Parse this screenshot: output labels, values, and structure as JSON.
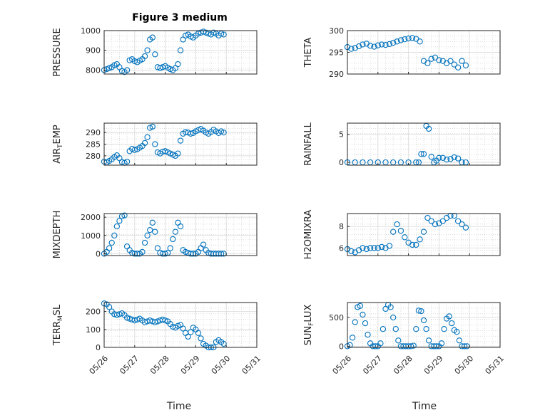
{
  "figure": {
    "title": "Figure 3 medium",
    "xlabel": "Time",
    "date_ticks": [
      "05/26",
      "05/27",
      "05/28",
      "05/29",
      "05/30",
      "05/31"
    ]
  },
  "chart_data": [
    {
      "type": "scatter",
      "ylabel": "PRESSURE",
      "ylim": [
        780,
        1000
      ],
      "yticks": [
        800,
        900,
        1000
      ],
      "xlim": [
        "05/26 00:00",
        "05/31 00:00"
      ],
      "grid": true,
      "marker": "o",
      "color": "#0072bd",
      "series": [
        {
          "x": [
            "05/26 00:00",
            "05/26 02:00",
            "05/26 04:00",
            "05/26 06:00",
            "05/26 08:00",
            "05/26 10:00",
            "05/26 12:00",
            "05/26 14:00",
            "05/26 16:00",
            "05/26 18:00",
            "05/26 20:00",
            "05/26 22:00",
            "05/27 00:00",
            "05/27 02:00",
            "05/27 04:00",
            "05/27 06:00",
            "05/27 08:00",
            "05/27 10:00",
            "05/27 12:00",
            "05/27 14:00",
            "05/27 16:00",
            "05/27 18:00",
            "05/27 20:00",
            "05/27 22:00",
            "05/28 00:00",
            "05/28 02:00",
            "05/28 04:00",
            "05/28 06:00",
            "05/28 08:00",
            "05/28 10:00",
            "05/28 12:00",
            "05/28 14:00",
            "05/28 16:00",
            "05/28 18:00",
            "05/28 20:00",
            "05/28 22:00",
            "05/29 00:00",
            "05/29 02:00",
            "05/29 04:00",
            "05/29 06:00",
            "05/29 08:00",
            "05/29 10:00",
            "05/29 12:00",
            "05/29 14:00",
            "05/29 16:00",
            "05/29 18:00",
            "05/29 20:00",
            "05/29 22:00"
          ],
          "y": [
            800,
            805,
            810,
            815,
            825,
            830,
            815,
            795,
            790,
            800,
            850,
            855,
            845,
            840,
            848,
            855,
            870,
            900,
            955,
            965,
            880,
            815,
            810,
            815,
            820,
            812,
            805,
            800,
            810,
            830,
            900,
            955,
            975,
            980,
            970,
            965,
            975,
            985,
            990,
            995,
            990,
            985,
            980,
            990,
            985,
            975,
            985,
            980
          ]
        }
      ]
    },
    {
      "type": "scatter",
      "ylabel": "THETA",
      "ylim": [
        290,
        300
      ],
      "yticks": [
        290,
        295,
        300
      ],
      "xlim": [
        "05/26 00:00",
        "05/31 00:00"
      ],
      "grid": true,
      "marker": "o",
      "color": "#0072bd",
      "series": [
        {
          "x": [
            "05/26 00:00",
            "05/26 03:00",
            "05/26 06:00",
            "05/26 09:00",
            "05/26 12:00",
            "05/26 15:00",
            "05/26 18:00",
            "05/26 21:00",
            "05/27 00:00",
            "05/27 03:00",
            "05/27 06:00",
            "05/27 09:00",
            "05/27 12:00",
            "05/27 15:00",
            "05/27 18:00",
            "05/27 21:00",
            "05/28 00:00",
            "05/28 03:00",
            "05/28 06:00",
            "05/28 09:00",
            "05/28 12:00",
            "05/28 15:00",
            "05/28 18:00",
            "05/28 21:00",
            "05/29 00:00",
            "05/29 03:00",
            "05/29 06:00",
            "05/29 09:00",
            "05/29 12:00",
            "05/29 15:00",
            "05/29 18:00",
            "05/29 21:00"
          ],
          "y": [
            296.2,
            295.8,
            296.0,
            296.4,
            296.8,
            297.0,
            296.5,
            296.3,
            296.6,
            296.8,
            296.7,
            296.9,
            297.2,
            297.5,
            297.8,
            298.0,
            298.2,
            298.3,
            298.1,
            297.5,
            293.0,
            292.5,
            293.5,
            293.8,
            293.2,
            293.0,
            292.5,
            293.0,
            292.2,
            291.5,
            293.0,
            292.0
          ]
        }
      ]
    },
    {
      "type": "scatter",
      "ylabel": "AIR_TEMP",
      "ylim": [
        276,
        294
      ],
      "yticks": [
        280,
        285,
        290
      ],
      "xlim": [
        "05/26 00:00",
        "05/31 00:00"
      ],
      "grid": true,
      "marker": "o",
      "color": "#0072bd",
      "series": [
        {
          "x": [
            "05/26 00:00",
            "05/26 02:00",
            "05/26 04:00",
            "05/26 06:00",
            "05/26 08:00",
            "05/26 10:00",
            "05/26 12:00",
            "05/26 14:00",
            "05/26 16:00",
            "05/26 18:00",
            "05/26 20:00",
            "05/26 22:00",
            "05/27 00:00",
            "05/27 02:00",
            "05/27 04:00",
            "05/27 06:00",
            "05/27 08:00",
            "05/27 10:00",
            "05/27 12:00",
            "05/27 14:00",
            "05/27 16:00",
            "05/27 18:00",
            "05/27 20:00",
            "05/27 22:00",
            "05/28 00:00",
            "05/28 02:00",
            "05/28 04:00",
            "05/28 06:00",
            "05/28 08:00",
            "05/28 10:00",
            "05/28 12:00",
            "05/28 14:00",
            "05/28 16:00",
            "05/28 18:00",
            "05/28 20:00",
            "05/28 22:00",
            "05/29 00:00",
            "05/29 02:00",
            "05/29 04:00",
            "05/29 06:00",
            "05/29 08:00",
            "05/29 10:00",
            "05/29 12:00",
            "05/29 14:00",
            "05/29 16:00",
            "05/29 18:00",
            "05/29 20:00",
            "05/29 22:00"
          ],
          "y": [
            277.5,
            277.2,
            277.8,
            278.5,
            279.5,
            280.2,
            279.0,
            277.3,
            277.0,
            277.5,
            282.0,
            283.0,
            282.5,
            282.8,
            283.5,
            284.2,
            285.5,
            288.0,
            292.0,
            292.5,
            285.0,
            281.5,
            281.0,
            281.8,
            282.0,
            281.5,
            281.0,
            280.5,
            280.0,
            281.0,
            286.5,
            289.5,
            290.2,
            290.0,
            289.5,
            289.8,
            290.5,
            291.0,
            291.5,
            290.8,
            290.0,
            289.5,
            290.2,
            291.2,
            290.5,
            289.8,
            290.5,
            290.0
          ]
        }
      ]
    },
    {
      "type": "scatter",
      "ylabel": "RAINFALL",
      "ylim": [
        -0.5,
        7
      ],
      "yticks": [
        0,
        5
      ],
      "xlim": [
        "05/26 00:00",
        "05/31 00:00"
      ],
      "grid": true,
      "marker": "o",
      "color": "#0072bd",
      "series": [
        {
          "x": [
            "05/26 00:00",
            "05/26 06:00",
            "05/26 12:00",
            "05/26 18:00",
            "05/27 00:00",
            "05/27 06:00",
            "05/27 12:00",
            "05/27 18:00",
            "05/28 00:00",
            "05/28 06:00",
            "05/28 08:00",
            "05/28 10:00",
            "05/28 12:00",
            "05/28 14:00",
            "05/28 16:00",
            "05/28 18:00",
            "05/28 20:00",
            "05/28 22:00",
            "05/29 00:00",
            "05/29 03:00",
            "05/29 06:00",
            "05/29 09:00",
            "05/29 12:00",
            "05/29 15:00",
            "05/29 18:00",
            "05/29 21:00"
          ],
          "y": [
            0,
            0,
            0,
            0,
            0,
            0,
            0,
            0,
            0,
            0,
            0,
            1.5,
            1.5,
            6.5,
            6.0,
            1.0,
            0,
            0.3,
            0.8,
            0.8,
            0.5,
            0.6,
            0.9,
            0.7,
            0,
            0
          ]
        }
      ]
    },
    {
      "type": "scatter",
      "ylabel": "MIXDEPTH",
      "ylim": [
        -100,
        2200
      ],
      "yticks": [
        0,
        1000,
        2000
      ],
      "xlim": [
        "05/26 00:00",
        "05/31 00:00"
      ],
      "grid": true,
      "marker": "o",
      "color": "#0072bd",
      "series": [
        {
          "x": [
            "05/26 00:00",
            "05/26 02:00",
            "05/26 04:00",
            "05/26 06:00",
            "05/26 08:00",
            "05/26 10:00",
            "05/26 12:00",
            "05/26 14:00",
            "05/26 16:00",
            "05/26 18:00",
            "05/26 20:00",
            "05/26 22:00",
            "05/27 00:00",
            "05/27 02:00",
            "05/27 04:00",
            "05/27 06:00",
            "05/27 08:00",
            "05/27 10:00",
            "05/27 12:00",
            "05/27 14:00",
            "05/27 16:00",
            "05/27 18:00",
            "05/27 20:00",
            "05/27 22:00",
            "05/28 00:00",
            "05/28 02:00",
            "05/28 04:00",
            "05/28 06:00",
            "05/28 08:00",
            "05/28 10:00",
            "05/28 12:00",
            "05/28 14:00",
            "05/28 16:00",
            "05/28 18:00",
            "05/28 20:00",
            "05/28 22:00",
            "05/29 00:00",
            "05/29 02:00",
            "05/29 04:00",
            "05/29 06:00",
            "05/29 08:00",
            "05/29 10:00",
            "05/29 12:00",
            "05/29 14:00",
            "05/29 16:00",
            "05/29 18:00",
            "05/29 20:00",
            "05/29 22:00"
          ],
          "y": [
            0,
            100,
            300,
            600,
            1000,
            1500,
            1800,
            2050,
            2100,
            400,
            200,
            50,
            0,
            0,
            0,
            100,
            600,
            1000,
            1300,
            1700,
            1200,
            300,
            50,
            0,
            0,
            50,
            300,
            800,
            1200,
            1700,
            1500,
            200,
            100,
            50,
            0,
            0,
            0,
            100,
            300,
            500,
            200,
            50,
            0,
            0,
            0,
            0,
            0,
            0
          ]
        }
      ]
    },
    {
      "type": "scatter",
      "ylabel": "H2OMIXRA",
      "ylim": [
        5.3,
        9.2
      ],
      "yticks": [
        6,
        8
      ],
      "xlim": [
        "05/26 00:00",
        "05/31 00:00"
      ],
      "grid": true,
      "marker": "o",
      "color": "#0072bd",
      "series": [
        {
          "x": [
            "05/26 00:00",
            "05/26 03:00",
            "05/26 06:00",
            "05/26 09:00",
            "05/26 12:00",
            "05/26 15:00",
            "05/26 18:00",
            "05/26 21:00",
            "05/27 00:00",
            "05/27 03:00",
            "05/27 06:00",
            "05/27 09:00",
            "05/27 12:00",
            "05/27 15:00",
            "05/27 18:00",
            "05/27 21:00",
            "05/28 00:00",
            "05/28 03:00",
            "05/28 06:00",
            "05/28 09:00",
            "05/28 12:00",
            "05/28 15:00",
            "05/28 18:00",
            "05/28 21:00",
            "05/29 00:00",
            "05/29 03:00",
            "05/29 06:00",
            "05/29 09:00",
            "05/29 12:00",
            "05/29 15:00",
            "05/29 18:00",
            "05/29 21:00"
          ],
          "y": [
            5.9,
            5.7,
            5.6,
            5.8,
            6.0,
            5.9,
            6.0,
            6.0,
            6.0,
            6.1,
            6.0,
            6.2,
            7.5,
            8.2,
            7.6,
            7.0,
            6.5,
            6.3,
            6.3,
            6.8,
            7.5,
            8.8,
            8.5,
            8.2,
            8.3,
            8.5,
            8.8,
            9.0,
            9.0,
            8.5,
            8.2,
            7.9
          ]
        }
      ]
    },
    {
      "type": "scatter",
      "ylabel": "TERR_MSL",
      "ylim": [
        0,
        250
      ],
      "yticks": [
        0,
        100,
        200
      ],
      "xlim": [
        "05/26 00:00",
        "05/31 00:00"
      ],
      "grid": true,
      "marker": "o",
      "color": "#0072bd",
      "series": [
        {
          "x": [
            "05/26 00:00",
            "05/26 02:00",
            "05/26 04:00",
            "05/26 06:00",
            "05/26 08:00",
            "05/26 10:00",
            "05/26 12:00",
            "05/26 14:00",
            "05/26 16:00",
            "05/26 18:00",
            "05/26 20:00",
            "05/26 22:00",
            "05/27 00:00",
            "05/27 02:00",
            "05/27 04:00",
            "05/27 06:00",
            "05/27 08:00",
            "05/27 10:00",
            "05/27 12:00",
            "05/27 14:00",
            "05/27 16:00",
            "05/27 18:00",
            "05/27 20:00",
            "05/27 22:00",
            "05/28 00:00",
            "05/28 02:00",
            "05/28 04:00",
            "05/28 06:00",
            "05/28 08:00",
            "05/28 10:00",
            "05/28 12:00",
            "05/28 14:00",
            "05/28 16:00",
            "05/28 18:00",
            "05/28 20:00",
            "05/28 22:00",
            "05/29 00:00",
            "05/29 02:00",
            "05/29 04:00",
            "05/29 06:00",
            "05/29 08:00",
            "05/29 10:00",
            "05/29 12:00",
            "05/29 14:00",
            "05/29 16:00",
            "05/29 18:00",
            "05/29 20:00",
            "05/29 22:00"
          ],
          "y": [
            245,
            240,
            225,
            200,
            185,
            180,
            185,
            190,
            180,
            165,
            160,
            155,
            150,
            155,
            160,
            150,
            140,
            145,
            150,
            145,
            140,
            145,
            150,
            155,
            150,
            145,
            130,
            115,
            110,
            120,
            125,
            105,
            80,
            60,
            85,
            110,
            100,
            80,
            50,
            20,
            10,
            0,
            0,
            0,
            30,
            40,
            30,
            20
          ]
        }
      ]
    },
    {
      "type": "scatter",
      "ylabel": "SUN_FLUX",
      "ylim": [
        -20,
        760
      ],
      "yticks": [
        0,
        500
      ],
      "xlim": [
        "05/26 00:00",
        "05/31 00:00"
      ],
      "grid": true,
      "marker": "o",
      "color": "#0072bd",
      "series": [
        {
          "x": [
            "05/26 00:00",
            "05/26 02:00",
            "05/26 04:00",
            "05/26 06:00",
            "05/26 08:00",
            "05/26 10:00",
            "05/26 12:00",
            "05/26 14:00",
            "05/26 16:00",
            "05/26 18:00",
            "05/26 20:00",
            "05/26 22:00",
            "05/27 00:00",
            "05/27 02:00",
            "05/27 04:00",
            "05/27 06:00",
            "05/27 08:00",
            "05/27 10:00",
            "05/27 12:00",
            "05/27 14:00",
            "05/27 16:00",
            "05/27 18:00",
            "05/27 20:00",
            "05/27 22:00",
            "05/28 00:00",
            "05/28 02:00",
            "05/28 04:00",
            "05/28 06:00",
            "05/28 08:00",
            "05/28 10:00",
            "05/28 12:00",
            "05/28 14:00",
            "05/28 16:00",
            "05/28 18:00",
            "05/28 20:00",
            "05/28 22:00",
            "05/29 00:00",
            "05/29 02:00",
            "05/29 04:00",
            "05/29 06:00",
            "05/29 08:00",
            "05/29 10:00",
            "05/29 12:00",
            "05/29 14:00",
            "05/29 16:00",
            "05/29 18:00",
            "05/29 20:00",
            "05/29 22:00"
          ],
          "y": [
            0,
            20,
            150,
            420,
            680,
            700,
            550,
            400,
            200,
            50,
            0,
            0,
            0,
            50,
            300,
            650,
            720,
            680,
            500,
            300,
            100,
            0,
            0,
            0,
            0,
            0,
            10,
            300,
            620,
            610,
            450,
            300,
            100,
            0,
            0,
            0,
            0,
            50,
            300,
            480,
            520,
            400,
            280,
            250,
            100,
            0,
            0,
            0
          ]
        }
      ]
    }
  ]
}
